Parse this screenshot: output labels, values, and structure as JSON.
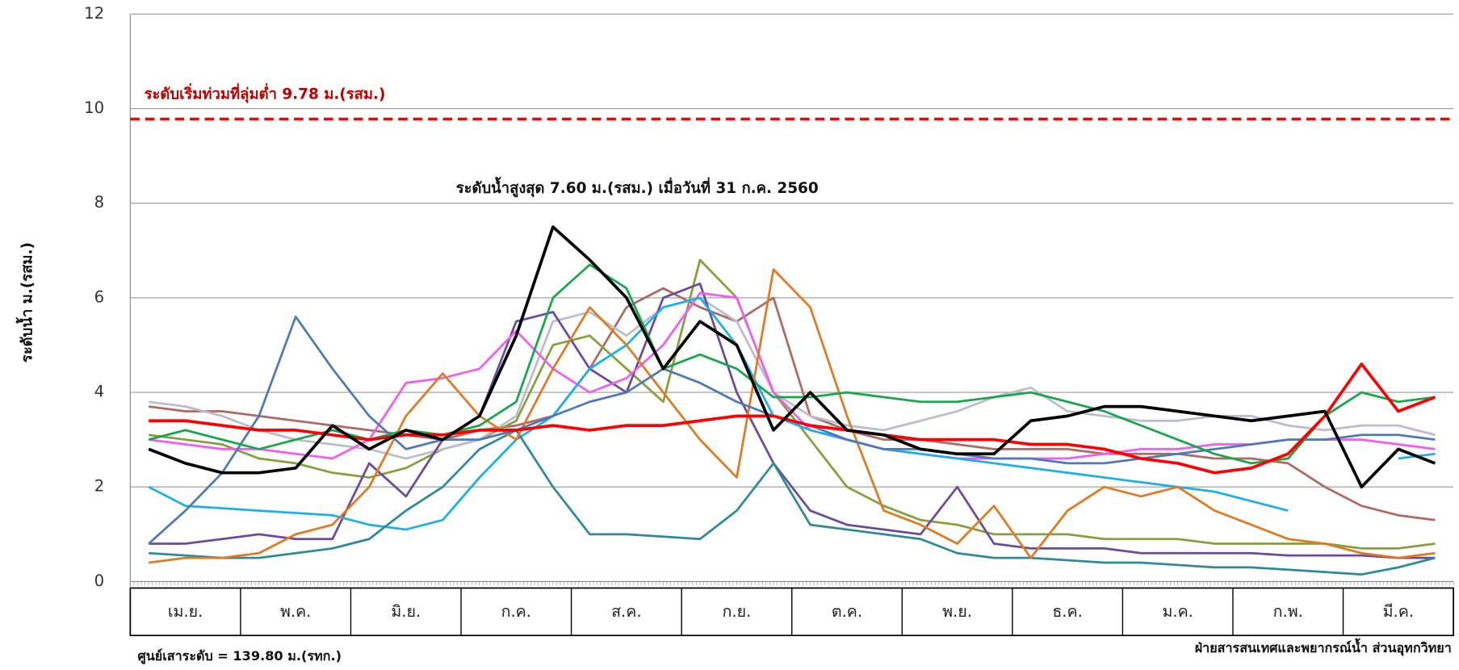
{
  "chart_data": {
    "type": "line",
    "y_label": "ระดับน้ำ ม.(รสม.)",
    "threshold": {
      "label": "ระดับเริ่มท่วมที่ลุ่มต่ำ 9.78 ม.(รสม.)",
      "value": 9.78,
      "color": "#ff0000"
    },
    "peak_annotation": "ระดับน้ำสูงสุด 7.60 ม.(รสม.) เมื่อวันที่ 31 ก.ค. 2560",
    "footer_left": "ศูนย์เสาระดับ = 139.80 ม.(รทก.)",
    "footer_right": "ฝ่ายสารสนเทศและพยากรณ์น้ำ ส่วนอุทกวิทยา",
    "ylim": [
      0,
      12
    ],
    "yticks": [
      0,
      2,
      4,
      6,
      8,
      10,
      12
    ],
    "grid": true,
    "categories": [
      null,
      "เม.ย.",
      null,
      null,
      "พ.ค.",
      null,
      null,
      "มิ.ย.",
      null,
      null,
      "ก.ค.",
      null,
      null,
      "ส.ค.",
      null,
      null,
      "ก.ย.",
      null,
      null,
      "ต.ค.",
      null,
      null,
      "พ.ย.",
      null,
      null,
      "ธ.ค.",
      null,
      null,
      "ม.ค.",
      null,
      null,
      "ก.พ.",
      null,
      null,
      "มี.ค.",
      null
    ],
    "series": [
      {
        "color": "#ae6a64",
        "values": [
          3.7,
          3.6,
          3.6,
          3.5,
          3.4,
          3.3,
          3.2,
          3.1,
          3.0,
          3.2,
          3.3,
          3.5,
          4.5,
          5.8,
          6.2,
          5.8,
          5.5,
          6.0,
          3.5,
          3.2,
          3.0,
          3.0,
          2.9,
          2.8,
          2.8,
          2.8,
          2.7,
          2.7,
          2.7,
          2.6,
          2.6,
          2.5,
          2.0,
          1.6,
          1.4,
          1.3
        ]
      },
      {
        "color": "#86a03c",
        "values": [
          3.1,
          3.0,
          2.9,
          2.6,
          2.5,
          2.3,
          2.2,
          2.4,
          2.8,
          3.0,
          3.4,
          5.0,
          5.2,
          4.5,
          3.8,
          6.8,
          6.0,
          4.0,
          3.0,
          2.0,
          1.6,
          1.3,
          1.2,
          1.0,
          1.0,
          1.0,
          0.9,
          0.9,
          0.9,
          0.8,
          0.8,
          0.8,
          0.8,
          0.7,
          0.7,
          0.8
        ]
      },
      {
        "color": "#bcbccc",
        "values": [
          3.8,
          3.7,
          3.5,
          3.2,
          3.0,
          2.9,
          2.8,
          2.6,
          2.8,
          3.0,
          3.5,
          5.5,
          5.7,
          5.2,
          5.8,
          6.0,
          5.5,
          4.0,
          3.5,
          3.3,
          3.2,
          3.4,
          3.6,
          3.9,
          4.1,
          3.6,
          3.5,
          3.4,
          3.4,
          3.5,
          3.5,
          3.3,
          3.2,
          3.3,
          3.3,
          3.1
        ]
      },
      {
        "color": "#6b4c9a",
        "values": [
          0.8,
          0.8,
          0.9,
          1.0,
          0.9,
          0.9,
          2.5,
          1.8,
          3.0,
          3.5,
          5.5,
          5.7,
          4.5,
          4.0,
          6.0,
          6.3,
          4.0,
          2.5,
          1.5,
          1.2,
          1.1,
          1.0,
          2.0,
          0.8,
          0.7,
          0.7,
          0.7,
          0.6,
          0.6,
          0.6,
          0.6,
          0.55,
          0.55,
          0.55,
          0.5,
          0.5
        ]
      },
      {
        "color": "#f25cf2",
        "values": [
          3.0,
          2.9,
          2.8,
          2.8,
          2.7,
          2.6,
          3.0,
          4.2,
          4.3,
          4.5,
          5.3,
          4.5,
          4.0,
          4.3,
          5.0,
          6.1,
          6.0,
          4.0,
          3.2,
          3.0,
          2.8,
          2.7,
          2.6,
          2.6,
          2.6,
          2.6,
          2.7,
          2.8,
          2.8,
          2.9,
          2.9,
          3.0,
          3.0,
          3.0,
          2.9,
          2.8
        ]
      },
      {
        "color": "#1ab0ea",
        "values": [
          2.0,
          1.6,
          1.55,
          1.5,
          1.45,
          1.4,
          1.2,
          1.1,
          1.3,
          2.2,
          3.0,
          3.5,
          4.5,
          5.0,
          5.8,
          6.0,
          5.0,
          3.5,
          3.2,
          3.0,
          2.8,
          2.7,
          2.6,
          2.5,
          2.4,
          2.3,
          2.2,
          2.1,
          2.0,
          1.9,
          1.7,
          1.5,
          null,
          null,
          2.6,
          2.7
        ]
      },
      {
        "color": "#2e8b9a",
        "values": [
          0.6,
          0.55,
          0.5,
          0.5,
          0.6,
          0.7,
          0.9,
          1.5,
          2.0,
          2.8,
          3.2,
          2.0,
          1.0,
          1.0,
          0.95,
          0.9,
          1.5,
          2.5,
          1.2,
          1.1,
          1.0,
          0.9,
          0.6,
          0.5,
          0.5,
          0.45,
          0.4,
          0.4,
          0.35,
          0.3,
          0.3,
          0.25,
          0.2,
          0.15,
          0.3,
          0.5
        ]
      },
      {
        "color": "#e07b22",
        "values": [
          0.4,
          0.5,
          0.5,
          0.6,
          1.0,
          1.2,
          2.0,
          3.5,
          4.4,
          3.5,
          3.0,
          4.5,
          5.8,
          5.0,
          4.0,
          3.0,
          2.2,
          6.6,
          5.8,
          3.5,
          1.5,
          1.2,
          0.8,
          1.6,
          0.5,
          1.5,
          2.0,
          1.8,
          2.0,
          1.5,
          1.2,
          0.9,
          0.8,
          0.6,
          0.5,
          0.6
        ]
      },
      {
        "color": "#4e7ab5",
        "values": [
          0.8,
          1.5,
          2.3,
          3.5,
          5.6,
          4.5,
          3.5,
          2.8,
          3.0,
          3.0,
          3.2,
          3.5,
          3.8,
          4.0,
          4.5,
          4.2,
          3.8,
          3.5,
          3.3,
          3.0,
          2.8,
          2.8,
          2.7,
          2.6,
          2.6,
          2.5,
          2.5,
          2.6,
          2.7,
          2.8,
          2.9,
          3.0,
          3.0,
          3.1,
          3.1,
          3.0
        ]
      },
      {
        "color": "#16a84a",
        "values": [
          3.0,
          3.2,
          3.0,
          2.8,
          3.0,
          3.2,
          3.0,
          3.2,
          3.1,
          3.3,
          3.8,
          6.0,
          6.7,
          6.2,
          4.5,
          4.8,
          4.5,
          3.9,
          3.9,
          4.0,
          3.9,
          3.8,
          3.8,
          3.9,
          4.0,
          3.8,
          3.6,
          3.3,
          3.0,
          2.7,
          2.5,
          2.6,
          3.5,
          4.0,
          3.8,
          3.9
        ]
      },
      {
        "color": "#ff0000",
        "values": [
          3.4,
          3.4,
          3.3,
          3.2,
          3.2,
          3.1,
          3.0,
          3.1,
          3.1,
          3.2,
          3.2,
          3.3,
          3.2,
          3.3,
          3.3,
          3.4,
          3.5,
          3.5,
          3.3,
          3.2,
          3.1,
          3.0,
          3.0,
          3.0,
          2.9,
          2.9,
          2.8,
          2.6,
          2.5,
          2.3,
          2.4,
          2.7,
          3.5,
          4.6,
          3.6,
          3.9
        ]
      },
      {
        "color": "#000000",
        "values": [
          2.8,
          2.5,
          2.3,
          2.3,
          2.4,
          3.3,
          2.8,
          3.2,
          3.0,
          3.5,
          5.2,
          7.5,
          6.8,
          6.0,
          4.5,
          5.5,
          5.0,
          3.2,
          4.0,
          3.2,
          3.1,
          2.8,
          2.7,
          2.7,
          3.4,
          3.5,
          3.7,
          3.7,
          3.6,
          3.5,
          3.4,
          3.5,
          3.6,
          2.0,
          2.8,
          2.5
        ]
      }
    ]
  }
}
